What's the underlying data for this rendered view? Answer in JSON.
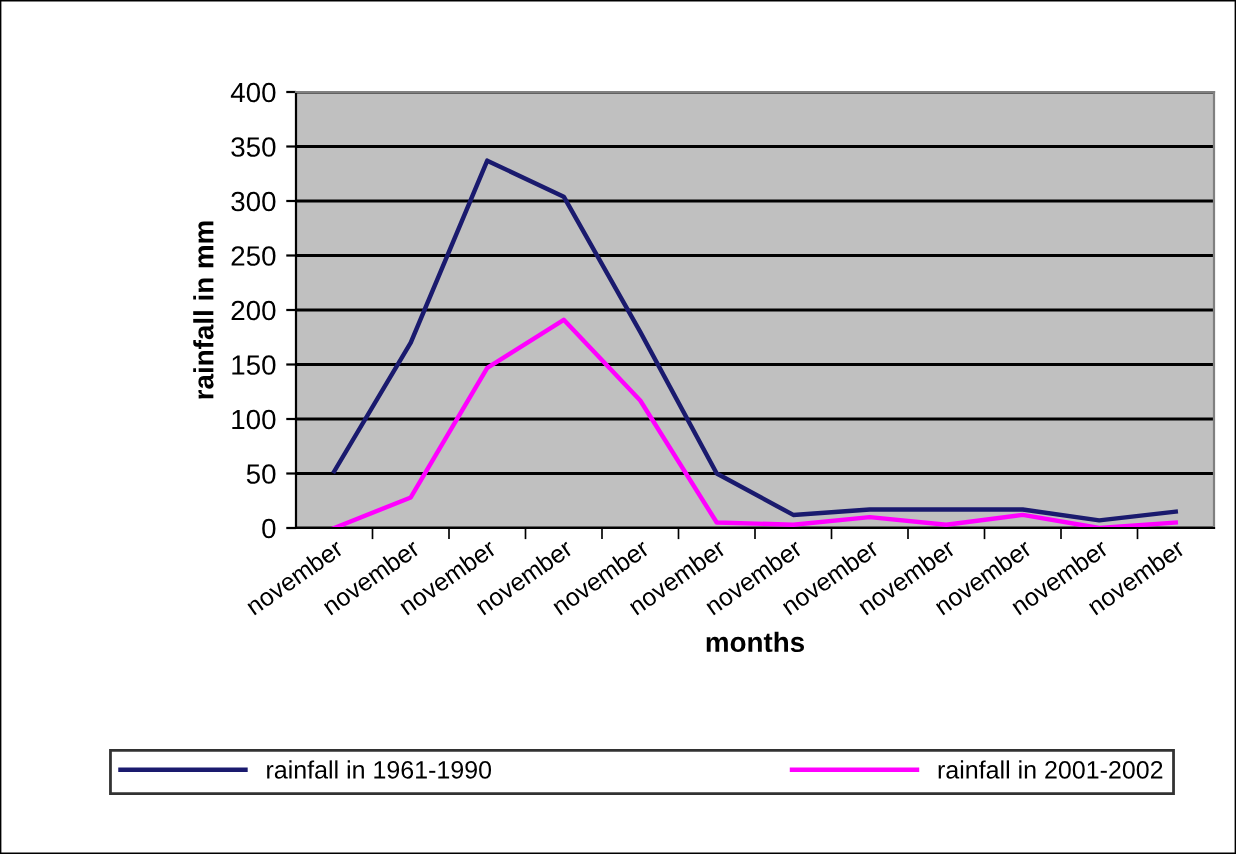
{
  "chart_data": {
    "type": "line",
    "xlabel": "months",
    "ylabel": "rainfall in mm",
    "categories": [
      "november",
      "november",
      "november",
      "november",
      "november",
      "november",
      "november",
      "november",
      "november",
      "november",
      "november",
      "november"
    ],
    "series": [
      {
        "name": "rainfall in 1961-1990",
        "color": "#1a1a6e",
        "values": [
          52,
          170,
          337,
          304,
          180,
          50,
          12,
          17,
          17,
          17,
          7,
          15
        ]
      },
      {
        "name": "rainfall in 2001-2002",
        "color": "#ff00ff",
        "values": [
          0,
          28,
          147,
          191,
          117,
          5,
          3,
          10,
          3,
          12,
          0,
          5
        ]
      }
    ],
    "ylim": [
      0,
      400
    ],
    "yticks": [
      0,
      50,
      100,
      150,
      200,
      250,
      300,
      350,
      400
    ],
    "grid": "y",
    "legend": "bottom",
    "marker": "none",
    "line_style": "solid"
  }
}
